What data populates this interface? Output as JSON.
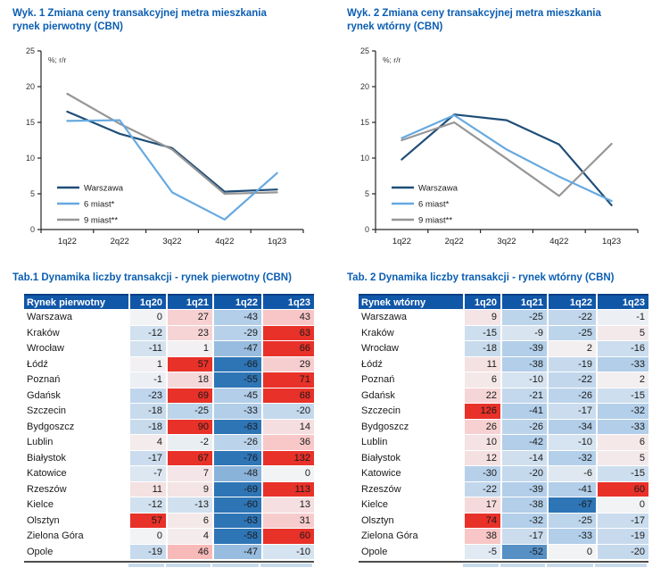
{
  "colors": {
    "title_blue": "#0B5EB2",
    "table_header_bg": "#1157A8",
    "table_header_text": "#FFFFFF",
    "axis": "#262626",
    "tick_text": "#333333",
    "body_text": "#1A1A1A",
    "heat_mid": "#F2F3F5",
    "heat_blue_light": "#B2CEE9",
    "heat_blue_dark": "#2E75B6",
    "heat_pink_light": "#F8C6C6",
    "heat_red": "#E83129",
    "table_bottom_border": "#4D4D4D",
    "sliver_blue": "#C7DAEC"
  },
  "chart_data": [
    {
      "type": "line",
      "title": "Wyk. 1 Zmiana ceny transakcyjnej metra mieszkania rynek pierwotny (CBN)",
      "title_line1": "Wyk. 1 Zmiana ceny transakcyjnej metra mieszkania",
      "title_line2": "rynek pierwotny (CBN)",
      "unit_label": "%; r/r",
      "categories": [
        "1q22",
        "2q22",
        "3q22",
        "4q22",
        "1q23"
      ],
      "ylim": [
        0,
        25
      ],
      "yticks": [
        0,
        5,
        10,
        15,
        20,
        25
      ],
      "grid": false,
      "legend_position": "inside-bottom-left",
      "series": [
        {
          "name": "Warszawa",
          "color": "#1F4E79",
          "values": [
            16.5,
            13.4,
            11.4,
            5.3,
            5.6
          ]
        },
        {
          "name": "6 miast*",
          "color": "#66A9E0",
          "values": [
            15.2,
            15.3,
            5.2,
            1.4,
            7.9
          ]
        },
        {
          "name": "9 miast**",
          "color": "#969696",
          "values": [
            19.0,
            14.8,
            11.2,
            5.0,
            5.2
          ]
        }
      ]
    },
    {
      "type": "line",
      "title": "Wyk. 2 Zmiana ceny transakcyjnej metra mieszkania rynek wtórny (CBN)",
      "title_line1": "Wyk. 2 Zmiana ceny transakcyjnej metra mieszkania",
      "title_line2": "rynek wtórny (CBN)",
      "unit_label": "%; r/r",
      "categories": [
        "1q22",
        "2q22",
        "3q22",
        "4q22",
        "1q23"
      ],
      "ylim": [
        0,
        25
      ],
      "yticks": [
        0,
        5,
        10,
        15,
        20,
        25
      ],
      "grid": false,
      "legend_position": "inside-bottom-left",
      "series": [
        {
          "name": "Warszawa",
          "color": "#1F4E79",
          "values": [
            9.8,
            16.1,
            15.3,
            11.9,
            3.4
          ]
        },
        {
          "name": "6 miast*",
          "color": "#66A9E0",
          "values": [
            12.8,
            16.0,
            11.2,
            7.4,
            4.0
          ]
        },
        {
          "name": "9 miast**",
          "color": "#969696",
          "values": [
            12.5,
            15.0,
            9.9,
            4.7,
            12.0
          ]
        }
      ]
    },
    {
      "type": "table",
      "title": "Tab.1 Dynamika liczby transakcji - rynek pierwotny (CBN)",
      "header": [
        "Rynek pierwotny",
        "1q20",
        "1q21",
        "1q22",
        "1q23"
      ],
      "rows": [
        [
          "Warszawa",
          0,
          27,
          -43,
          43
        ],
        [
          "Kraków",
          -12,
          23,
          -29,
          63
        ],
        [
          "Wrocław",
          -11,
          1,
          -47,
          66
        ],
        [
          "Łódź",
          1,
          57,
          -66,
          29
        ],
        [
          "Poznań",
          -1,
          18,
          -55,
          71
        ],
        [
          "Gdańsk",
          -23,
          69,
          -45,
          68
        ],
        [
          "Szczecin",
          -18,
          -25,
          -33,
          -20
        ],
        [
          "Bydgoszcz",
          -18,
          90,
          -63,
          14
        ],
        [
          "Lublin",
          4,
          -2,
          -26,
          36
        ],
        [
          "Białystok",
          -17,
          67,
          -76,
          132
        ],
        [
          "Katowice",
          -7,
          7,
          -48,
          0
        ],
        [
          "Rzeszów",
          11,
          9,
          -69,
          113
        ],
        [
          "Kielce",
          -12,
          -13,
          -60,
          13
        ],
        [
          "Olsztyn",
          57,
          6,
          -63,
          31
        ],
        [
          "Zielona Góra",
          0,
          4,
          -58,
          60
        ],
        [
          "Opole",
          -19,
          46,
          -47,
          -10
        ]
      ]
    },
    {
      "type": "table",
      "title": "Tab. 2 Dynamika liczby transakcji - rynek wtórny (CBN)",
      "header": [
        "Rynek wtórny",
        "1q20",
        "1q21",
        "1q22",
        "1q23"
      ],
      "rows": [
        [
          "Warszawa",
          9,
          -25,
          -22,
          -1
        ],
        [
          "Kraków",
          -15,
          -9,
          -25,
          5
        ],
        [
          "Wrocław",
          -18,
          -39,
          2,
          -16
        ],
        [
          "Łódź",
          11,
          -38,
          -19,
          -33
        ],
        [
          "Poznań",
          6,
          -10,
          -22,
          2
        ],
        [
          "Gdańsk",
          22,
          -21,
          -26,
          -15
        ],
        [
          "Szczecin",
          126,
          -41,
          -17,
          -32
        ],
        [
          "Bydgoszcz",
          26,
          -26,
          -34,
          -33
        ],
        [
          "Lublin",
          10,
          -42,
          -10,
          6
        ],
        [
          "Białystok",
          12,
          -14,
          -32,
          5
        ],
        [
          "Katowice",
          -30,
          -20,
          -6,
          -15
        ],
        [
          "Rzeszów",
          -22,
          -39,
          -41,
          60
        ],
        [
          "Kielce",
          17,
          -38,
          -67,
          0
        ],
        [
          "Olsztyn",
          74,
          -32,
          -25,
          -17
        ],
        [
          "Zielona Góra",
          38,
          -17,
          -33,
          -19
        ],
        [
          "Opole",
          -5,
          -52,
          0,
          -20
        ]
      ]
    }
  ]
}
